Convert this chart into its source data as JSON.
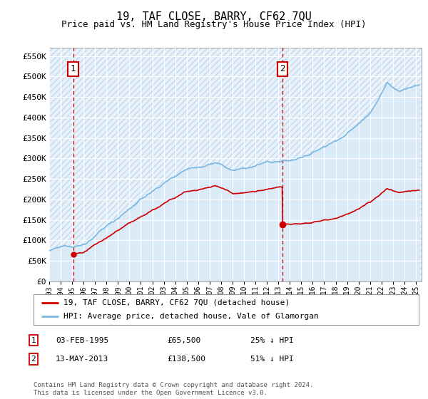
{
  "title": "19, TAF CLOSE, BARRY, CF62 7QU",
  "subtitle": "Price paid vs. HM Land Registry's House Price Index (HPI)",
  "ylabel_ticks": [
    "£0",
    "£50K",
    "£100K",
    "£150K",
    "£200K",
    "£250K",
    "£300K",
    "£350K",
    "£400K",
    "£450K",
    "£500K",
    "£550K"
  ],
  "ytick_values": [
    0,
    50000,
    100000,
    150000,
    200000,
    250000,
    300000,
    350000,
    400000,
    450000,
    500000,
    550000
  ],
  "ylim": [
    0,
    570000
  ],
  "xlim_start": 1993.0,
  "xlim_end": 2025.5,
  "purchase1_date": 1995.09,
  "purchase1_price": 65500,
  "purchase2_date": 2013.37,
  "purchase2_price": 138500,
  "hpi_color": "#7ab8e0",
  "hpi_fill_color": "#daeaf7",
  "price_color": "#cc0000",
  "dashed_line_color": "#cc0000",
  "marker_color": "#cc0000",
  "chart_bg": "#e8f2fb",
  "hatch_bg": "#dce6f0",
  "grid_color": "#ffffff",
  "legend_label_red": "19, TAF CLOSE, BARRY, CF62 7QU (detached house)",
  "legend_label_blue": "HPI: Average price, detached house, Vale of Glamorgan",
  "annotation1": "03-FEB-1995",
  "annotation1_price": "£65,500",
  "annotation1_hpi": "25% ↓ HPI",
  "annotation2": "13-MAY-2013",
  "annotation2_price": "£138,500",
  "annotation2_hpi": "51% ↓ HPI",
  "footer": "Contains HM Land Registry data © Crown copyright and database right 2024.\nThis data is licensed under the Open Government Licence v3.0.",
  "xtick_years": [
    1993,
    1994,
    1995,
    1996,
    1997,
    1998,
    1999,
    2000,
    2001,
    2002,
    2003,
    2004,
    2005,
    2006,
    2007,
    2008,
    2009,
    2010,
    2011,
    2012,
    2013,
    2014,
    2015,
    2016,
    2017,
    2018,
    2019,
    2020,
    2021,
    2022,
    2023,
    2024,
    2025
  ]
}
